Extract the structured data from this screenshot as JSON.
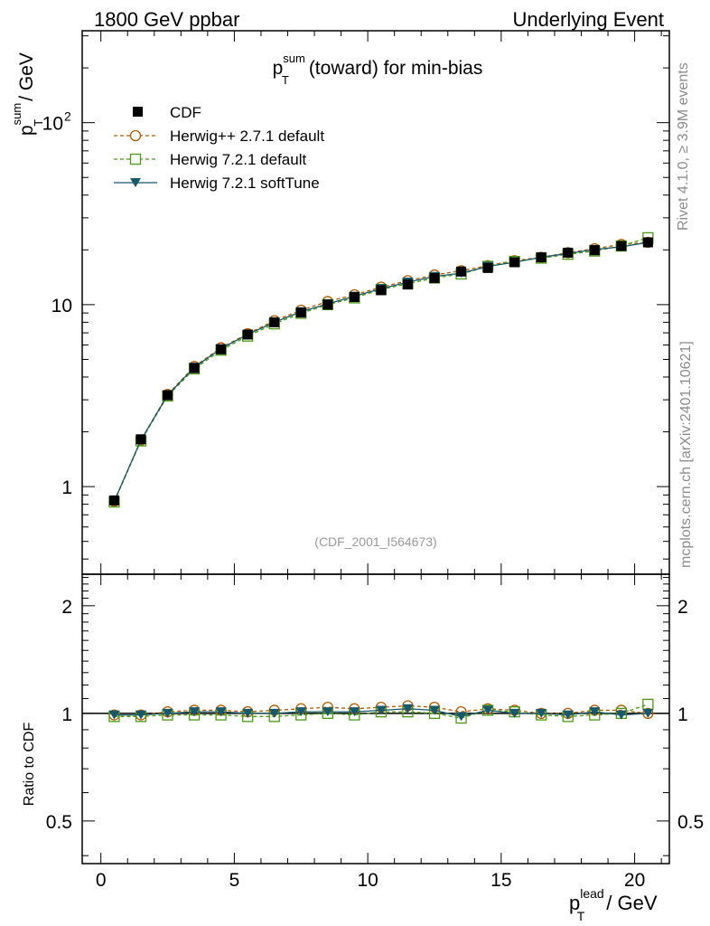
{
  "header": {
    "left": "1800 GeV ppbar",
    "right": "Underlying Event"
  },
  "side": {
    "rivet": "Rivet 4.1.0, ≥ 3.9M events",
    "mcplots": "mcplots.cern.ch [arXiv:2401.10621]"
  },
  "chart_data": {
    "type": "line",
    "title_main": "p",
    "title_sup": "sum",
    "title_sub": "T",
    "title_rest": "(toward) for min-bias",
    "analysis_tag": "(CDF_2001_I564673)",
    "ylabel": {
      "p": "p",
      "sup": "sum",
      "sub": "T",
      "rest": "/ GeV"
    },
    "xlabel": {
      "p": "p",
      "sup": "lead",
      "sub": "T",
      "rest": "/ GeV"
    },
    "ratio_ylabel": "Ratio to CDF",
    "xlim": [
      -0.7,
      21.3
    ],
    "ylim": [
      0.33,
      320
    ],
    "yscale": "log",
    "ratio_ylim": [
      0.38,
      2.45
    ],
    "ratio_yscale": "log",
    "main_yticks": [
      {
        "value": 1,
        "label": "1"
      },
      {
        "value": 10,
        "label": "10"
      },
      {
        "value": 100,
        "label": "10",
        "sup": "2"
      }
    ],
    "ratio_yticks": [
      {
        "value": 0.5,
        "label": "0.5"
      },
      {
        "value": 1,
        "label": "1"
      },
      {
        "value": 2,
        "label": "2"
      }
    ],
    "xticks": [
      {
        "value": 0,
        "label": "0"
      },
      {
        "value": 5,
        "label": "5"
      },
      {
        "value": 10,
        "label": "10"
      },
      {
        "value": 15,
        "label": "15"
      },
      {
        "value": 20,
        "label": "20"
      }
    ],
    "x": [
      0.5,
      1.5,
      2.5,
      3.5,
      4.5,
      5.5,
      6.5,
      7.5,
      8.5,
      9.5,
      10.5,
      11.5,
      12.5,
      13.5,
      14.5,
      15.5,
      16.5,
      17.5,
      18.5,
      19.5,
      20.5
    ],
    "series": [
      {
        "name": "CDF",
        "color": "#000000",
        "marker": "square-filled",
        "dash": "none",
        "values": [
          0.84,
          1.82,
          3.18,
          4.48,
          5.68,
          6.85,
          8.0,
          9.05,
          10.0,
          11.0,
          12.0,
          12.9,
          14.0,
          15.2,
          15.9,
          17.1,
          18.2,
          19.3,
          19.9,
          21.0,
          22.0
        ]
      },
      {
        "name": "Herwig++ 2.7.1 default",
        "color": "#b35a00",
        "marker": "circle-open",
        "dash": "4,3",
        "ratio": [
          0.99,
          0.99,
          1.01,
          1.02,
          1.02,
          1.01,
          1.02,
          1.03,
          1.04,
          1.03,
          1.04,
          1.05,
          1.04,
          1.01,
          1.03,
          1.02,
          1.0,
          1.0,
          1.02,
          1.02,
          1.0
        ]
      },
      {
        "name": "Herwig 7.2.1 default",
        "color": "#4a9a15",
        "marker": "square-open",
        "dash": "4,3",
        "ratio": [
          0.98,
          0.98,
          0.99,
          0.99,
          0.99,
          0.98,
          0.98,
          0.99,
          1.0,
          0.99,
          1.01,
          1.01,
          1.0,
          0.97,
          1.02,
          1.01,
          0.99,
          0.98,
          0.99,
          1.0,
          1.06
        ]
      },
      {
        "name": "Herwig 7.2.1 softTune",
        "color": "#18586b",
        "marker": "triangle-down",
        "dash": "none",
        "ratio": [
          0.99,
          0.99,
          1.0,
          1.01,
          1.01,
          1.0,
          1.0,
          1.01,
          1.01,
          1.01,
          1.02,
          1.03,
          1.02,
          0.98,
          1.02,
          1.0,
          1.0,
          0.99,
          1.01,
          0.99,
          1.0
        ]
      }
    ]
  }
}
